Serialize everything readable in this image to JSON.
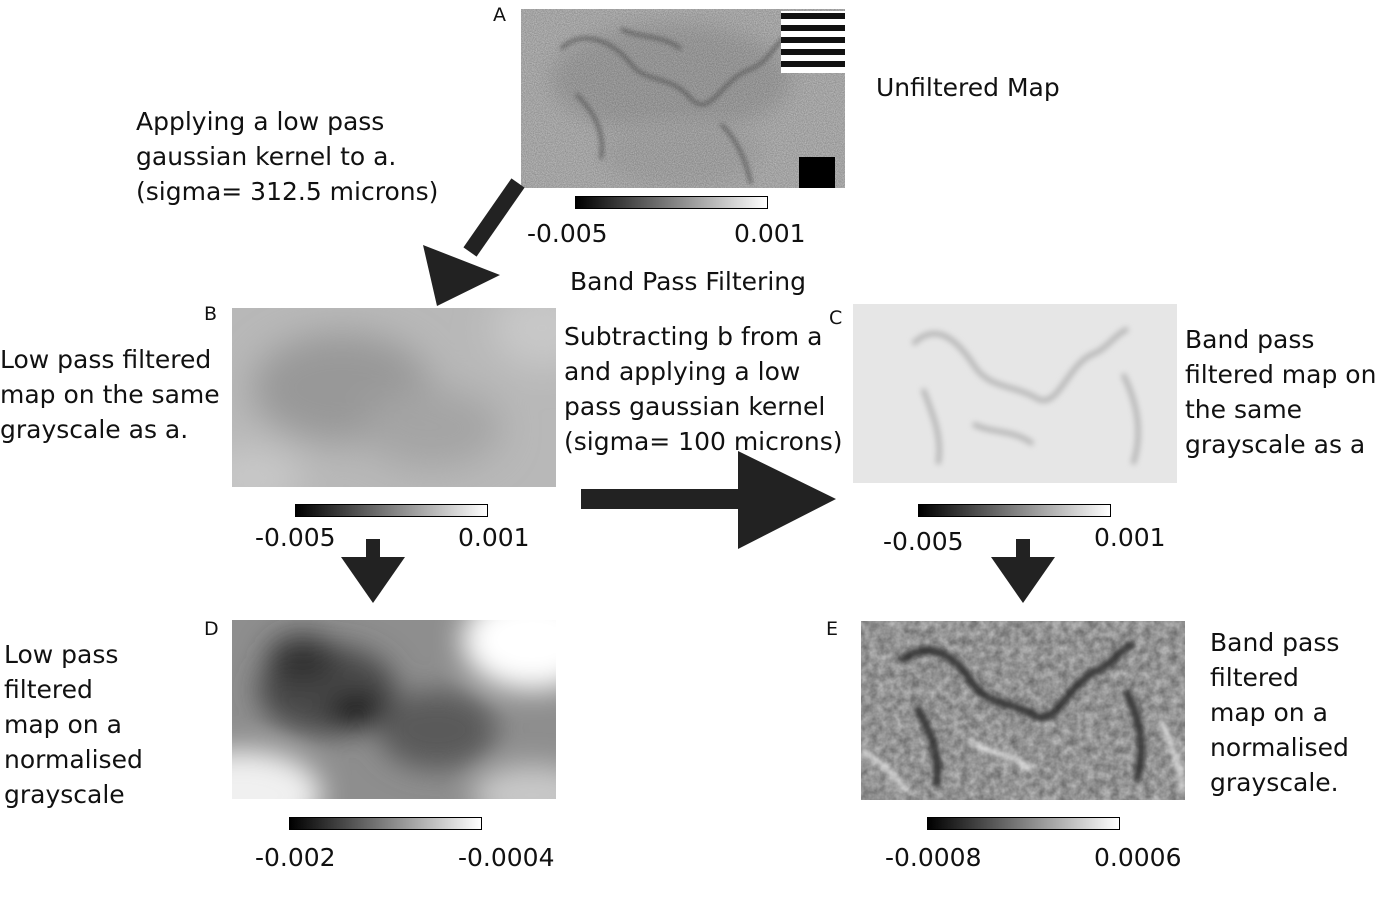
{
  "title": "Band Pass Filtering",
  "panels": {
    "a": {
      "label": "A",
      "caption": "Unfiltered Map",
      "colorbar": {
        "min_label": "-0.005",
        "max_label": "0.001"
      }
    },
    "b": {
      "label": "B",
      "caption_lines": [
        "Low pass filtered",
        "map on the same",
        "grayscale as a."
      ],
      "colorbar": {
        "min_label": "-0.005",
        "max_label": "0.001"
      }
    },
    "c": {
      "label": "C",
      "caption_lines": [
        "Band pass",
        "filtered map on",
        "the same",
        "grayscale as a"
      ],
      "colorbar": {
        "min_label": "-0.005",
        "max_label": "0.001"
      }
    },
    "d": {
      "label": "D",
      "caption_lines": [
        "Low pass",
        "filtered",
        "map on a",
        "normalised",
        "grayscale"
      ],
      "colorbar": {
        "min_label": "-0.002",
        "max_label": "-0.0004"
      }
    },
    "e": {
      "label": "E",
      "caption_lines": [
        "Band pass",
        "filtered",
        "map on a",
        "normalised",
        "grayscale."
      ],
      "colorbar": {
        "min_label": "-0.0008",
        "max_label": "0.0006"
      }
    }
  },
  "steps": {
    "low_pass": [
      "Applying a low pass",
      "gaussian kernel to a.",
      "(sigma= 312.5 microns)"
    ],
    "band_pass": [
      "Subtracting b from a",
      "and applying a low",
      "pass gaussian kernel",
      "(sigma= 100 microns)"
    ]
  }
}
